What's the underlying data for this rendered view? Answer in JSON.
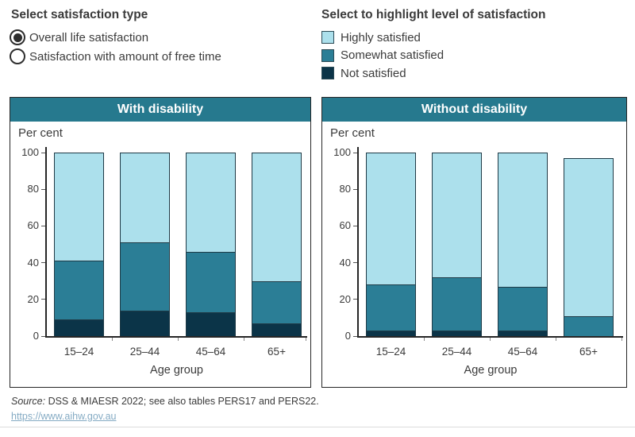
{
  "controls": {
    "satisfaction_type": {
      "title": "Select satisfaction type",
      "options": [
        {
          "label": "Overall life satisfaction",
          "selected": true
        },
        {
          "label": "Satisfaction with amount of free time",
          "selected": false
        }
      ]
    }
  },
  "legend": {
    "title": "Select to highlight level of satisfaction",
    "items": [
      {
        "label": "Highly satisfied",
        "color": "#ace0ec"
      },
      {
        "label": "Somewhat satisfied",
        "color": "#2b7e96"
      },
      {
        "label": "Not satisfied",
        "color": "#0b3448"
      }
    ]
  },
  "colors": {
    "panel_header": "#26798e",
    "highly_satisfied": "#ace0ec",
    "somewhat_satisfied": "#2b7e96",
    "not_satisfied": "#0b3448"
  },
  "chart_data": [
    {
      "type": "bar",
      "stacked": true,
      "title": "With disability",
      "axis_title_y": "Per cent",
      "xlabel": "Age group",
      "categories": [
        "15–24",
        "25–44",
        "45–64",
        "65+"
      ],
      "ylim": [
        0,
        100
      ],
      "yticks": [
        0,
        20,
        40,
        60,
        80,
        100
      ],
      "grid": false,
      "series": [
        {
          "name": "Not satisfied",
          "color": "#0b3448",
          "values": [
            9,
            14,
            13,
            7
          ]
        },
        {
          "name": "Somewhat satisfied",
          "color": "#2b7e96",
          "values": [
            32,
            37,
            33,
            23
          ]
        },
        {
          "name": "Highly satisfied",
          "color": "#ace0ec",
          "values": [
            59,
            49,
            54,
            70
          ]
        }
      ]
    },
    {
      "type": "bar",
      "stacked": true,
      "title": "Without disability",
      "axis_title_y": "Per cent",
      "xlabel": "Age group",
      "categories": [
        "15–24",
        "25–44",
        "45–64",
        "65+"
      ],
      "ylim": [
        0,
        100
      ],
      "yticks": [
        0,
        20,
        40,
        60,
        80,
        100
      ],
      "grid": false,
      "series": [
        {
          "name": "Not satisfied",
          "color": "#0b3448",
          "values": [
            3,
            3,
            3,
            0
          ]
        },
        {
          "name": "Somewhat satisfied",
          "color": "#2b7e96",
          "values": [
            25,
            29,
            24,
            11
          ]
        },
        {
          "name": "Highly satisfied",
          "color": "#ace0ec",
          "values": [
            72,
            68,
            73,
            86
          ]
        }
      ]
    }
  ],
  "footer": {
    "source_prefix": "Source:",
    "source_text": " DSS & MIAESR 2022; see also tables PERS17 and PERS22.",
    "link": "https://www.aihw.gov.au"
  }
}
